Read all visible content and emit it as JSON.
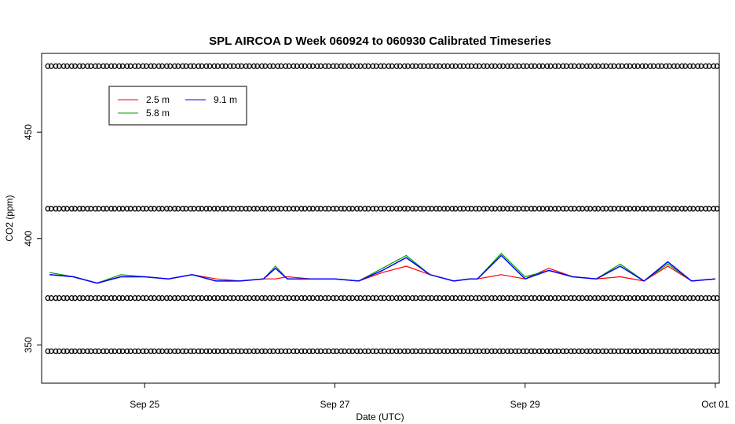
{
  "chart_data": {
    "type": "line",
    "title": "SPL AIRCOA D  Week 060924 to 060930  Calibrated Timeseries",
    "xlabel": "Date (UTC)",
    "ylabel": "CO2 (ppm)",
    "x_ticks": [
      "Sep 25",
      "Sep 27",
      "Sep 29",
      "Oct 01"
    ],
    "y_ticks": [
      "350",
      "400",
      "450"
    ],
    "xlim": [
      "2006-09-23T22:00",
      "2006-10-01T01:00"
    ],
    "ylim": [
      332,
      487
    ],
    "grid": false,
    "legend_position": "top-left",
    "series": [
      {
        "name": "2.5 m",
        "color": "#ff0000",
        "x": [
          "2006-09-24T00:00",
          "2006-09-24T06:00",
          "2006-09-24T12:00",
          "2006-09-24T18:00",
          "2006-09-25T00:00",
          "2006-09-25T06:00",
          "2006-09-25T12:00",
          "2006-09-25T18:00",
          "2006-09-26T00:00",
          "2006-09-26T06:00",
          "2006-09-26T09:00",
          "2006-09-26T12:00",
          "2006-09-26T18:00",
          "2006-09-27T00:00",
          "2006-09-27T06:00",
          "2006-09-27T12:00",
          "2006-09-27T18:00",
          "2006-09-28T00:00",
          "2006-09-28T06:00",
          "2006-09-28T10:00",
          "2006-09-28T12:00",
          "2006-09-28T18:00",
          "2006-09-29T00:00",
          "2006-09-29T06:00",
          "2006-09-29T12:00",
          "2006-09-29T18:00",
          "2006-09-30T00:00",
          "2006-09-30T06:00",
          "2006-09-30T12:00",
          "2006-09-30T18:00",
          "2006-10-01T00:00"
        ],
        "values": [
          383,
          382,
          379,
          382,
          382,
          381,
          383,
          381,
          380,
          381,
          381,
          382,
          381,
          381,
          380,
          384,
          387,
          383,
          380,
          381,
          381,
          383,
          381,
          386,
          382,
          381,
          382,
          380,
          387,
          380,
          381
        ]
      },
      {
        "name": "5.8 m",
        "color": "#00a000",
        "x": [
          "2006-09-24T00:00",
          "2006-09-24T06:00",
          "2006-09-24T12:00",
          "2006-09-24T18:00",
          "2006-09-25T00:00",
          "2006-09-25T06:00",
          "2006-09-25T12:00",
          "2006-09-25T18:00",
          "2006-09-26T00:00",
          "2006-09-26T06:00",
          "2006-09-26T09:00",
          "2006-09-26T12:00",
          "2006-09-26T18:00",
          "2006-09-27T00:00",
          "2006-09-27T06:00",
          "2006-09-27T12:00",
          "2006-09-27T18:00",
          "2006-09-28T00:00",
          "2006-09-28T06:00",
          "2006-09-28T10:00",
          "2006-09-28T12:00",
          "2006-09-28T18:00",
          "2006-09-29T00:00",
          "2006-09-29T06:00",
          "2006-09-29T12:00",
          "2006-09-29T18:00",
          "2006-09-30T00:00",
          "2006-09-30T06:00",
          "2006-09-30T12:00",
          "2006-09-30T18:00",
          "2006-10-01T00:00"
        ],
        "values": [
          384,
          382,
          379,
          383,
          382,
          381,
          383,
          380,
          380,
          381,
          387,
          381,
          381,
          381,
          380,
          386,
          392,
          383,
          380,
          381,
          381,
          393,
          382,
          385,
          382,
          381,
          388,
          380,
          388,
          380,
          381
        ]
      },
      {
        "name": "9.1 m",
        "color": "#0000ff",
        "x": [
          "2006-09-24T00:00",
          "2006-09-24T06:00",
          "2006-09-24T12:00",
          "2006-09-24T18:00",
          "2006-09-25T00:00",
          "2006-09-25T06:00",
          "2006-09-25T12:00",
          "2006-09-25T18:00",
          "2006-09-26T00:00",
          "2006-09-26T06:00",
          "2006-09-26T09:00",
          "2006-09-26T12:00",
          "2006-09-26T18:00",
          "2006-09-27T00:00",
          "2006-09-27T06:00",
          "2006-09-27T12:00",
          "2006-09-27T18:00",
          "2006-09-28T00:00",
          "2006-09-28T06:00",
          "2006-09-28T10:00",
          "2006-09-28T12:00",
          "2006-09-28T18:00",
          "2006-09-29T00:00",
          "2006-09-29T06:00",
          "2006-09-29T12:00",
          "2006-09-29T18:00",
          "2006-09-30T00:00",
          "2006-09-30T06:00",
          "2006-09-30T12:00",
          "2006-09-30T18:00",
          "2006-10-01T00:00"
        ],
        "values": [
          383,
          382,
          379,
          382,
          382,
          381,
          383,
          380,
          380,
          381,
          386,
          381,
          381,
          381,
          380,
          385,
          391,
          383,
          380,
          381,
          381,
          392,
          381,
          385,
          382,
          381,
          387,
          380,
          389,
          380,
          381
        ]
      }
    ],
    "calibration_marker_rows": {
      "marker": "open-circle",
      "color": "#000000",
      "y_values": [
        481,
        414,
        372,
        347
      ],
      "x_start": "2006-09-24T00:00",
      "x_end": "2006-10-01T00:00",
      "interval_hours": 2
    }
  }
}
